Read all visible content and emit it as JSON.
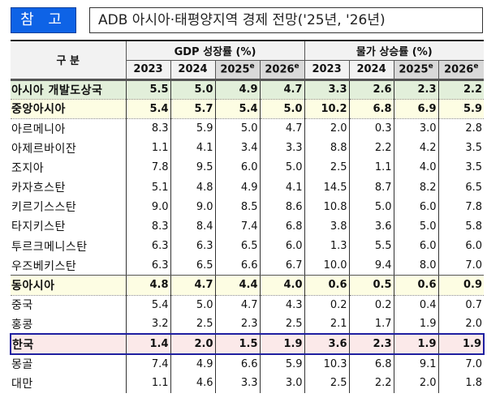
{
  "header": {
    "tag_label": "참 고",
    "title": "ADB 아시아·태평양지역 경제 전망('25년, '26년)"
  },
  "table": {
    "label_header": "구 분",
    "groups": [
      {
        "label": "GDP 성장률 (%)"
      },
      {
        "label": "물가 상승률 (%)"
      }
    ],
    "years": [
      {
        "year": "2023",
        "sup": ""
      },
      {
        "year": "2024",
        "sup": ""
      },
      {
        "year": "2025",
        "sup": "e"
      },
      {
        "year": "2026",
        "sup": "e"
      },
      {
        "year": "2023",
        "sup": ""
      },
      {
        "year": "2024",
        "sup": ""
      },
      {
        "year": "2025",
        "sup": "e"
      },
      {
        "year": "2026",
        "sup": "e"
      }
    ],
    "rows": [
      {
        "name": "아시아 개발도상국",
        "type": "agg-asia",
        "values": [
          "5.5",
          "5.0",
          "4.9",
          "4.7",
          "3.3",
          "2.6",
          "2.3",
          "2.2"
        ]
      },
      {
        "name": "중앙아시아",
        "type": "agg-region",
        "values": [
          "5.4",
          "5.7",
          "5.4",
          "5.0",
          "10.2",
          "6.8",
          "6.9",
          "5.9"
        ]
      },
      {
        "name": "아르메니아",
        "type": "country",
        "values": [
          "8.3",
          "5.9",
          "5.0",
          "4.7",
          "2.0",
          "0.3",
          "3.0",
          "2.8"
        ]
      },
      {
        "name": "아제르바이잔",
        "type": "country",
        "values": [
          "1.1",
          "4.1",
          "3.4",
          "3.3",
          "8.8",
          "2.2",
          "4.2",
          "3.5"
        ]
      },
      {
        "name": "조지아",
        "type": "country",
        "values": [
          "7.8",
          "9.5",
          "6.0",
          "5.0",
          "2.5",
          "1.1",
          "4.0",
          "3.5"
        ]
      },
      {
        "name": "카자흐스탄",
        "type": "country",
        "values": [
          "5.1",
          "4.8",
          "4.9",
          "4.1",
          "14.5",
          "8.7",
          "8.2",
          "6.5"
        ]
      },
      {
        "name": "키르기스스탄",
        "type": "country",
        "values": [
          "9.0",
          "9.0",
          "8.5",
          "8.6",
          "10.8",
          "5.0",
          "6.0",
          "7.8"
        ]
      },
      {
        "name": "타지키스탄",
        "type": "country",
        "values": [
          "8.3",
          "8.4",
          "7.4",
          "6.8",
          "3.8",
          "3.6",
          "5.0",
          "5.8"
        ]
      },
      {
        "name": "투르크메니스탄",
        "type": "country",
        "values": [
          "6.3",
          "6.3",
          "6.5",
          "6.0",
          "1.3",
          "5.5",
          "6.0",
          "6.0"
        ]
      },
      {
        "name": "우즈베키스탄",
        "type": "country-last",
        "values": [
          "6.3",
          "6.5",
          "6.6",
          "6.7",
          "10.0",
          "9.4",
          "8.0",
          "7.0"
        ]
      },
      {
        "name": "동아시아",
        "type": "agg-region",
        "values": [
          "4.8",
          "4.7",
          "4.4",
          "4.0",
          "0.6",
          "0.5",
          "0.6",
          "0.9"
        ]
      },
      {
        "name": "중국",
        "type": "country",
        "values": [
          "5.4",
          "5.0",
          "4.7",
          "4.3",
          "0.2",
          "0.2",
          "0.4",
          "0.7"
        ]
      },
      {
        "name": "홍콩",
        "type": "country",
        "values": [
          "3.2",
          "2.5",
          "2.3",
          "2.5",
          "2.1",
          "1.7",
          "1.9",
          "2.0"
        ]
      },
      {
        "name": "한국",
        "type": "korea",
        "values": [
          "1.4",
          "2.0",
          "1.5",
          "1.9",
          "3.6",
          "2.3",
          "1.9",
          "1.9"
        ]
      },
      {
        "name": "몽골",
        "type": "country",
        "values": [
          "7.4",
          "4.9",
          "6.6",
          "5.9",
          "10.3",
          "6.8",
          "9.1",
          "7.0"
        ]
      },
      {
        "name": "대만",
        "type": "country",
        "values": [
          "1.1",
          "4.6",
          "3.3",
          "3.0",
          "2.5",
          "2.2",
          "2.0",
          "1.8"
        ]
      }
    ]
  },
  "colors": {
    "tag_bg": "#0e63e6",
    "asia_row_bg": "#e2efda",
    "region_row_bg": "#fdfde3",
    "korea_row_bg": "#fbe9e9",
    "korea_border": "#1f1fa0"
  }
}
